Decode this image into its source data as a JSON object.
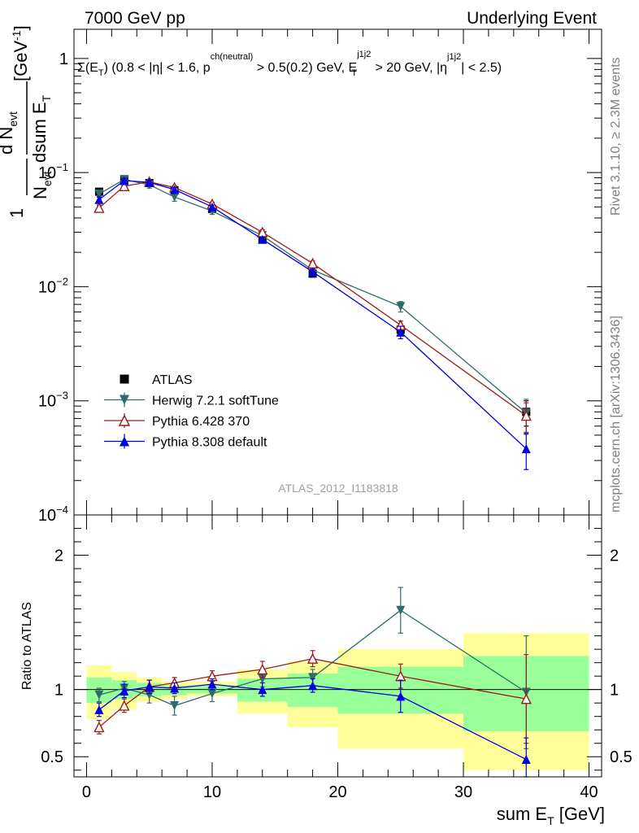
{
  "header": {
    "left": "7000 GeV pp",
    "right": "Underlying Event",
    "side_top": "Rivet 3.1.10, ≥ 2.3M events",
    "side_bottom": "mcplots.cern.ch [arXiv:1306.3436]",
    "watermark": "ATLAS_2012_I1183818"
  },
  "colors": {
    "atlas": "#000000",
    "herwig": "#2e6b6b",
    "pythia6": "#9e1a1a",
    "pythia8": "#0000e0",
    "band_yellow": "#ffff99",
    "band_green": "#99ff99"
  },
  "chart_data": [
    {
      "type": "scatter",
      "panel": "main",
      "title_text": "Σ(E_T) (0.8 < |η| < 1.6, p^ch(neutral) > 0.5(0.2) GeV, E_T^j1j2 > 20 GeV, |η^j1j2| < 2.5)",
      "title": {
        "p1": "Σ(E",
        "s1": "T",
        "p2": ") (0.8 < |η| < 1.6, p",
        "s2": "ch(neutral)",
        "p3": " > 0.5(0.2) GeV, E",
        "s3": "j1j2",
        "s4": "T",
        "p4": " > 20 GeV, |η",
        "s5": "j1j2",
        "p5": "| < 2.5)"
      },
      "ylabel_text": "1/N_evt dN_evt/dsum E_T [GeV^-1]",
      "ylabel": {
        "one": "1",
        "nevt": "N",
        "nevt_sub": "evt",
        "dnevt": "d N",
        "dnevt_sub": "evt",
        "dsum": "dsum E",
        "dsum_sub": "T",
        "unit": "[GeV",
        "unit_sup": "-1",
        "unit_end": "]"
      },
      "yscale": "log",
      "ylim": [
        0.0001,
        1.8
      ],
      "xlim": [
        -1,
        41
      ],
      "yticks": [
        {
          "label": "1",
          "exp": "",
          "value": 1
        },
        {
          "label": "10",
          "exp": "−1",
          "value": 0.1
        },
        {
          "label": "10",
          "exp": "−2",
          "value": 0.01
        },
        {
          "label": "10",
          "exp": "−3",
          "value": 0.001
        },
        {
          "label": "10",
          "exp": "−4",
          "value": 0.0001
        }
      ],
      "legend_position": "lower-left",
      "series": [
        {
          "name": "ATLAS",
          "key": "atlas",
          "marker": "square",
          "x": [
            1,
            3,
            5,
            7,
            10,
            14,
            18,
            25,
            35
          ],
          "y": [
            0.068,
            0.086,
            0.081,
            0.07,
            0.048,
            0.026,
            0.013,
            0.0042,
            0.0008
          ],
          "yerr": [
            0.003,
            0.003,
            0.003,
            0.003,
            0.002,
            0.001,
            0.0006,
            0.0004,
            0.0002
          ]
        },
        {
          "name": "Herwig 7.2.1 softTune",
          "key": "herwig",
          "marker": "triangle-down",
          "x": [
            1,
            3,
            5,
            7,
            10,
            14,
            18,
            25,
            35
          ],
          "y": [
            0.065,
            0.087,
            0.078,
            0.061,
            0.046,
            0.028,
            0.014,
            0.0067,
            0.00078
          ],
          "yerr": [
            0.003,
            0.004,
            0.005,
            0.005,
            0.003,
            0.0015,
            0.0008,
            0.0007,
            0.00025
          ]
        },
        {
          "name": "Pythia 6.428 370",
          "key": "pythia6",
          "marker": "triangle-open",
          "x": [
            1,
            3,
            5,
            7,
            10,
            14,
            18,
            25,
            35
          ],
          "y": [
            0.049,
            0.076,
            0.083,
            0.074,
            0.053,
            0.03,
            0.016,
            0.0046,
            0.00074
          ],
          "yerr": [
            0.003,
            0.004,
            0.004,
            0.003,
            0.002,
            0.0015,
            0.0008,
            0.0004,
            0.00022
          ]
        },
        {
          "name": "Pythia 8.308 default",
          "key": "pythia8",
          "marker": "triangle-up",
          "x": [
            1,
            3,
            5,
            7,
            10,
            14,
            18,
            25,
            35
          ],
          "y": [
            0.058,
            0.085,
            0.082,
            0.071,
            0.05,
            0.026,
            0.0135,
            0.004,
            0.00038
          ],
          "yerr": [
            0.003,
            0.004,
            0.004,
            0.003,
            0.002,
            0.0012,
            0.0007,
            0.0005,
            0.00013
          ]
        }
      ]
    },
    {
      "type": "scatter",
      "panel": "ratio",
      "ylabel": "Ratio to ATLAS",
      "xlabel_text": "sum E_T [GeV]",
      "xlabel": {
        "main": "sum E",
        "sub": "T",
        "unit": " [GeV]"
      },
      "ylim": [
        0.35,
        2.3
      ],
      "xlim": [
        -1,
        41
      ],
      "yticks": [
        {
          "label": "0.5",
          "value": 0.5
        },
        {
          "label": "1",
          "value": 1
        },
        {
          "label": "2",
          "value": 2
        }
      ],
      "xticks": [
        {
          "label": "0",
          "value": 0
        },
        {
          "label": "10",
          "value": 10
        },
        {
          "label": "20",
          "value": 20
        },
        {
          "label": "30",
          "value": 30
        },
        {
          "label": "40",
          "value": 40
        }
      ],
      "bands": {
        "edges": [
          0,
          2,
          4,
          6,
          8,
          12,
          16,
          20,
          30,
          40
        ],
        "yellow_lo": [
          0.78,
          0.85,
          0.91,
          0.93,
          0.95,
          0.82,
          0.72,
          0.56,
          0.4
        ],
        "yellow_hi": [
          1.18,
          1.13,
          1.09,
          1.06,
          1.06,
          1.15,
          1.21,
          1.3,
          1.42
        ],
        "green_lo": [
          0.9,
          0.93,
          0.95,
          0.96,
          0.97,
          0.91,
          0.87,
          0.82,
          0.69
        ],
        "green_hi": [
          1.09,
          1.07,
          1.05,
          1.03,
          1.03,
          1.08,
          1.12,
          1.17,
          1.25
        ]
      },
      "series": [
        {
          "name": "Herwig 7.2.1 softTune",
          "key": "herwig",
          "marker": "triangle-down",
          "x": [
            1,
            3,
            5,
            7,
            10,
            14,
            18,
            25,
            35
          ],
          "y": [
            0.96,
            1.01,
            0.96,
            0.88,
            0.97,
            1.08,
            1.09,
            1.59,
            0.98
          ],
          "yerr": [
            0.05,
            0.05,
            0.06,
            0.07,
            0.06,
            0.06,
            0.06,
            0.17,
            0.42
          ]
        },
        {
          "name": "Pythia 6.428 370",
          "key": "pythia6",
          "marker": "triangle-open",
          "x": [
            1,
            3,
            5,
            7,
            10,
            14,
            18,
            25,
            35
          ],
          "y": [
            0.72,
            0.88,
            1.02,
            1.05,
            1.1,
            1.15,
            1.23,
            1.1,
            0.93
          ],
          "yerr": [
            0.05,
            0.05,
            0.05,
            0.04,
            0.04,
            0.06,
            0.06,
            0.09,
            0.33
          ]
        },
        {
          "name": "Pythia 8.308 default",
          "key": "pythia8",
          "marker": "triangle-up",
          "x": [
            1,
            3,
            5,
            7,
            10,
            14,
            18,
            25,
            35
          ],
          "y": [
            0.85,
            0.99,
            1.02,
            1.01,
            1.04,
            1.0,
            1.03,
            0.95,
            0.48
          ],
          "yerr": [
            0.05,
            0.05,
            0.05,
            0.04,
            0.04,
            0.05,
            0.05,
            0.12,
            0.16
          ]
        }
      ]
    }
  ]
}
